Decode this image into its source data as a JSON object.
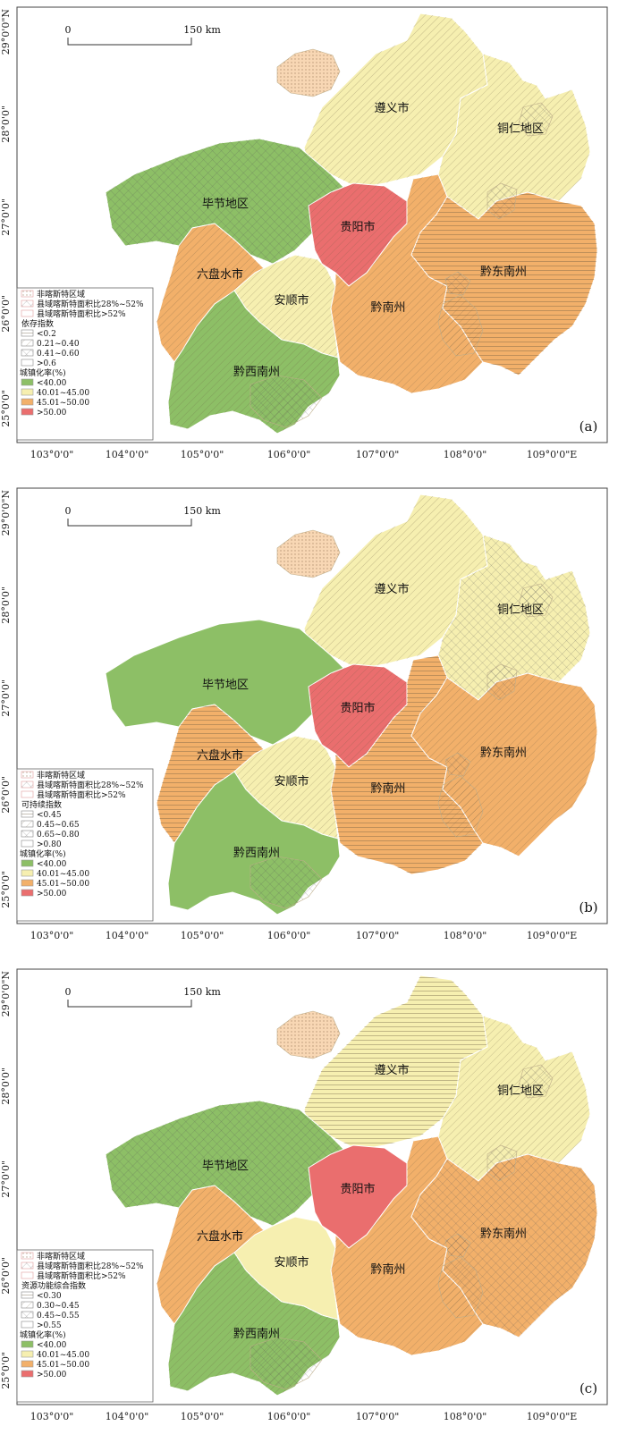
{
  "colors": {
    "lt40": "#8dbf66",
    "r40_45": "#f6efb0",
    "r45_50": "#f2b06a",
    "gt50": "#ea6e6e"
  },
  "axis": {
    "x_ticks": [
      "103°0'0\"",
      "104°0'0\"",
      "105°0'0\"",
      "106°0'0\"",
      "107°0'0\"",
      "108°0'0\"",
      "109°0'0\"E"
    ],
    "y_ticks": [
      "29°0'0\"N",
      "28°0'0\"",
      "27°0'0\"",
      "26°0'0\"",
      "25°0'0\""
    ]
  },
  "scale": {
    "start": "0",
    "end": "150 km"
  },
  "regions": [
    {
      "name": "遵义市",
      "rate_class": "r40_45"
    },
    {
      "name": "铜仁地区",
      "rate_class": "r40_45"
    },
    {
      "name": "毕节地区",
      "rate_class": "lt40"
    },
    {
      "name": "贵阳市",
      "rate_class": "gt50"
    },
    {
      "name": "六盘水市",
      "rate_class": "r45_50"
    },
    {
      "name": "安顺市",
      "rate_class": "r40_45"
    },
    {
      "name": "黔南州",
      "rate_class": "r45_50"
    },
    {
      "name": "黔东南州",
      "rate_class": "r45_50"
    },
    {
      "name": "黔西南州",
      "rate_class": "lt40"
    }
  ],
  "legend_common": {
    "karst_items": [
      "非喀斯特区域",
      "县域喀斯特面积比28%~52%",
      "县域喀斯特面积比>52%"
    ],
    "urban_title": "城镇化率(%)",
    "urban_items": [
      "<40.00",
      "40.01~45.00",
      "45.01~50.00",
      ">50.00"
    ]
  },
  "panels": [
    {
      "tag": "(a)",
      "index_title": "依存指数",
      "index_items": [
        "<0.2",
        "0.21~0.40",
        "0.41~0.60",
        ">0.6"
      ]
    },
    {
      "tag": "(b)",
      "index_title": "可持续指数",
      "index_items": [
        "<0.45",
        "0.45~0.65",
        "0.65~0.80",
        ">0.80"
      ]
    },
    {
      "tag": "(c)",
      "index_title": "资源功能综合指数",
      "index_items": [
        "<0.30",
        "0.30~0.45",
        "0.45~0.55",
        ">0.55"
      ]
    }
  ]
}
